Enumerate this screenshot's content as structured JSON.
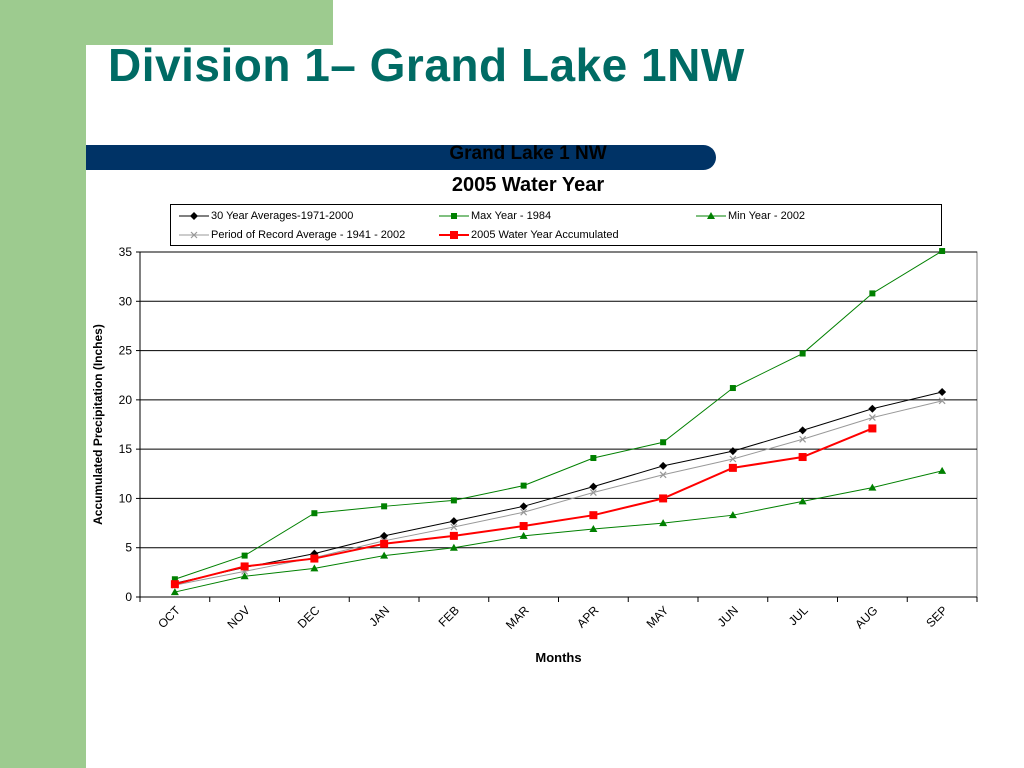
{
  "slide": {
    "title": "Division 1– Grand Lake 1NW",
    "background_color": "#9dcb8f",
    "title_color": "#006b64",
    "bar_color": "#003366"
  },
  "chart_data": {
    "type": "line",
    "title": "Grand Lake 1 NW",
    "subtitle": "2005 Water Year",
    "xlabel": "Months",
    "ylabel": "Accumulated Precipitation (Inches)",
    "categories": [
      "OCT",
      "NOV",
      "DEC",
      "JAN",
      "FEB",
      "MAR",
      "APR",
      "MAY",
      "JUN",
      "JUL",
      "AUG",
      "SEP"
    ],
    "ylim": [
      0,
      35
    ],
    "yticks": [
      "0",
      "5",
      "10",
      "15",
      "20",
      "25",
      "30",
      "35"
    ],
    "grid": true,
    "legend_position": "top",
    "series": [
      {
        "name": "30 Year Averages-1971-2000",
        "color": "#000000",
        "marker": "diamond",
        "values": [
          1.4,
          3.0,
          4.4,
          6.2,
          7.7,
          9.2,
          11.2,
          13.3,
          14.8,
          16.9,
          19.1,
          20.8
        ]
      },
      {
        "name": "Max Year - 1984",
        "color": "#008000",
        "marker": "square",
        "values": [
          1.8,
          4.2,
          8.5,
          9.2,
          9.8,
          11.3,
          14.1,
          15.7,
          21.2,
          24.7,
          30.8,
          35.1
        ]
      },
      {
        "name": "Min Year - 2002",
        "color": "#008000",
        "marker": "triangle",
        "values": [
          0.5,
          2.1,
          2.9,
          4.2,
          5.0,
          6.2,
          6.9,
          7.5,
          8.3,
          9.7,
          11.1,
          12.8
        ]
      },
      {
        "name": "Period of Record Average - 1941 - 2002",
        "color": "#999999",
        "marker": "x",
        "values": [
          1.2,
          2.6,
          4.0,
          5.7,
          7.1,
          8.6,
          10.6,
          12.4,
          14.0,
          16.0,
          18.2,
          19.9
        ]
      },
      {
        "name": "2005 Water Year Accumulated",
        "color": "#ff0000",
        "marker": "bigsquare",
        "values": [
          1.3,
          3.1,
          3.9,
          5.4,
          6.2,
          7.2,
          8.3,
          10.0,
          13.1,
          14.2,
          17.1,
          null
        ]
      }
    ]
  }
}
